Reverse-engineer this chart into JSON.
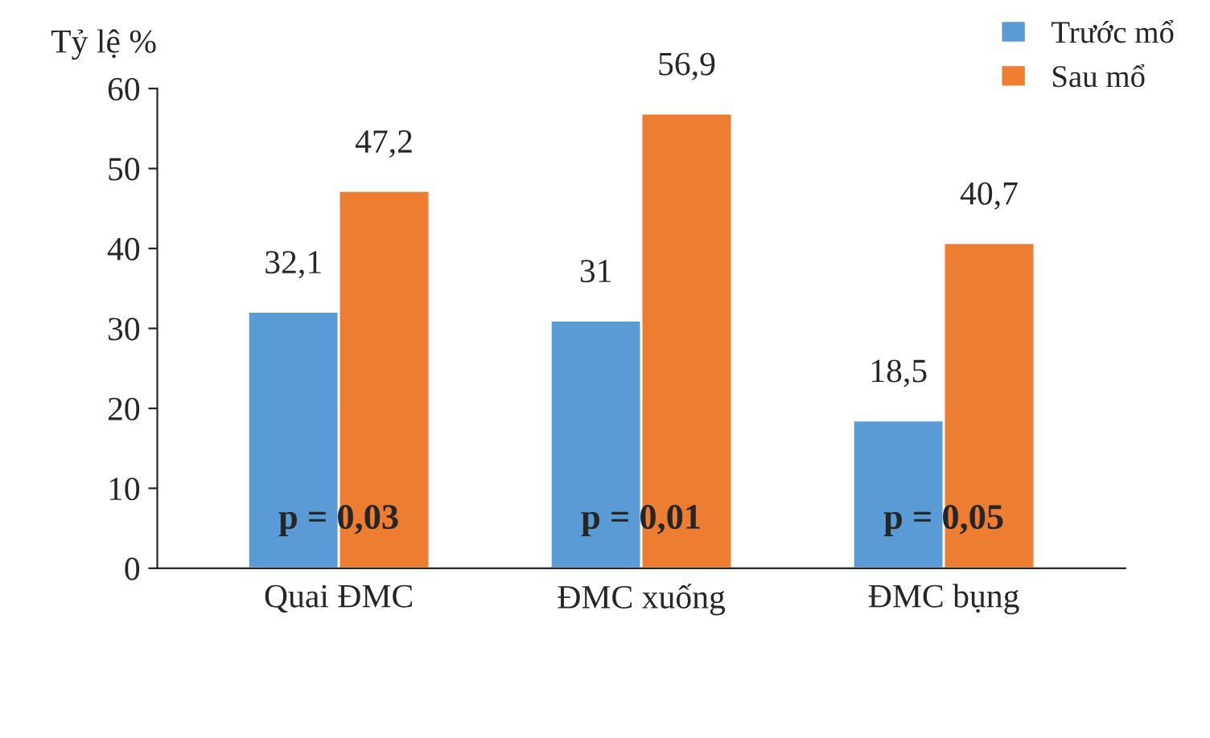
{
  "chart_data": {
    "type": "bar",
    "ylabel": "Tỷ lệ %",
    "categories": [
      "Quai ĐMC",
      "ĐMC xuống",
      "ĐMC bụng"
    ],
    "series": [
      {
        "name": "Trước mổ",
        "color": "#5b9bd5",
        "values": [
          32.1,
          31,
          18.5
        ],
        "value_labels": [
          "32,1",
          "31",
          "18,5"
        ]
      },
      {
        "name": "Sau mổ",
        "color": "#ed7d31",
        "values": [
          47.2,
          56.9,
          40.7
        ],
        "value_labels": [
          "47,2",
          "56,9",
          "40,7"
        ]
      }
    ],
    "ylim": [
      0,
      60
    ],
    "yticks": [
      0,
      10,
      20,
      30,
      40,
      50,
      60
    ],
    "annotations": [
      "p = 0,03",
      "p = 0,01",
      "p = 0,05"
    ],
    "grid": false,
    "legend": "top right"
  }
}
